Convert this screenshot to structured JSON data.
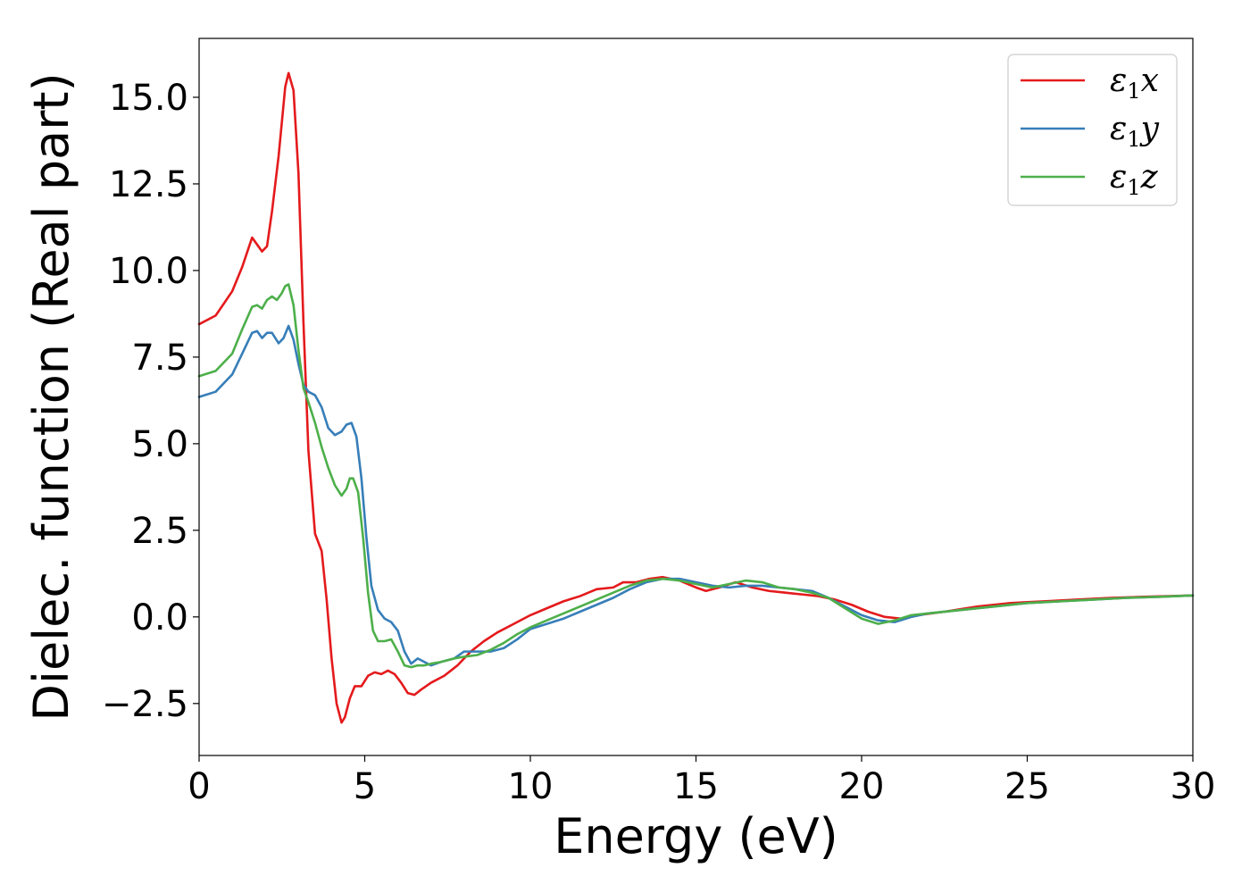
{
  "chart_data": {
    "type": "line",
    "title": "",
    "xlabel": "Energy (eV)",
    "ylabel": "Dielec. function (Real part)",
    "xlim": [
      0,
      30
    ],
    "ylim": [
      -4.0,
      16.7
    ],
    "x_ticks": [
      0,
      5,
      10,
      15,
      20,
      25,
      30
    ],
    "x_tick_labels": [
      "0",
      "5",
      "10",
      "15",
      "20",
      "25",
      "30"
    ],
    "y_ticks": [
      -2.5,
      0.0,
      2.5,
      5.0,
      7.5,
      10.0,
      12.5,
      15.0
    ],
    "y_tick_labels": [
      "−2.5",
      "0.0",
      "2.5",
      "5.0",
      "7.5",
      "10.0",
      "12.5",
      "15.0"
    ],
    "grid": false,
    "legend_position": "top-right",
    "series": [
      {
        "name": "ε1x",
        "legend_base": "ε",
        "legend_sub": "1",
        "legend_suffix": "x",
        "color": "#e41a1c",
        "x": [
          0,
          0.5,
          1.0,
          1.3,
          1.6,
          1.75,
          1.9,
          2.05,
          2.2,
          2.4,
          2.6,
          2.7,
          2.85,
          3.0,
          3.15,
          3.3,
          3.5,
          3.7,
          3.85,
          4.0,
          4.15,
          4.3,
          4.4,
          4.55,
          4.7,
          4.9,
          5.1,
          5.3,
          5.5,
          5.7,
          5.9,
          6.1,
          6.3,
          6.5,
          6.7,
          7.0,
          7.4,
          7.8,
          8.2,
          8.6,
          9.0,
          9.5,
          10.0,
          10.5,
          11.0,
          11.5,
          12.0,
          12.5,
          12.8,
          13.2,
          13.6,
          14.0,
          14.5,
          15.0,
          15.3,
          15.7,
          16.2,
          16.7,
          17.2,
          17.7,
          18.2,
          18.7,
          19.2,
          19.7,
          20.2,
          20.7,
          21.2,
          21.7,
          22.5,
          23.5,
          24.5,
          25.5,
          26.5,
          27.5,
          28.5,
          30.0
        ],
        "y": [
          8.45,
          8.7,
          9.4,
          10.1,
          10.95,
          10.75,
          10.55,
          10.7,
          11.7,
          13.3,
          15.3,
          15.7,
          15.2,
          12.8,
          8.5,
          4.8,
          2.4,
          1.9,
          0.5,
          -1.2,
          -2.5,
          -3.05,
          -2.9,
          -2.35,
          -2.0,
          -2.0,
          -1.7,
          -1.6,
          -1.65,
          -1.55,
          -1.65,
          -1.9,
          -2.2,
          -2.25,
          -2.1,
          -1.9,
          -1.7,
          -1.4,
          -1.0,
          -0.7,
          -0.45,
          -0.2,
          0.05,
          0.25,
          0.45,
          0.6,
          0.8,
          0.85,
          1.0,
          1.0,
          1.1,
          1.15,
          1.05,
          0.85,
          0.75,
          0.85,
          1.0,
          0.85,
          0.75,
          0.7,
          0.65,
          0.6,
          0.5,
          0.35,
          0.15,
          0.0,
          -0.05,
          0.05,
          0.15,
          0.3,
          0.4,
          0.45,
          0.5,
          0.55,
          0.58,
          0.62
        ]
      },
      {
        "name": "ε1y",
        "legend_base": "ε",
        "legend_sub": "1",
        "legend_suffix": "y",
        "color": "#377eb8",
        "x": [
          0,
          0.5,
          1.0,
          1.3,
          1.6,
          1.75,
          1.9,
          2.05,
          2.2,
          2.4,
          2.55,
          2.7,
          2.85,
          3.0,
          3.15,
          3.3,
          3.5,
          3.7,
          3.9,
          4.1,
          4.3,
          4.45,
          4.6,
          4.75,
          4.9,
          5.05,
          5.2,
          5.4,
          5.6,
          5.8,
          6.0,
          6.2,
          6.4,
          6.6,
          6.8,
          7.0,
          7.3,
          7.7,
          8.0,
          8.4,
          8.8,
          9.2,
          9.6,
          10.0,
          10.5,
          11.0,
          11.5,
          12.0,
          12.5,
          13.0,
          13.5,
          14.0,
          14.5,
          15.0,
          15.5,
          16.0,
          16.5,
          17.0,
          17.5,
          18.0,
          18.5,
          19.0,
          19.5,
          20.0,
          20.5,
          21.0,
          21.5,
          22.0,
          23.0,
          24.0,
          25.0,
          26.0,
          27.0,
          28.0,
          29.0,
          30.0
        ],
        "y": [
          6.35,
          6.5,
          7.0,
          7.6,
          8.2,
          8.25,
          8.05,
          8.2,
          8.2,
          7.9,
          8.05,
          8.4,
          8.0,
          7.3,
          6.7,
          6.5,
          6.4,
          6.05,
          5.45,
          5.25,
          5.35,
          5.55,
          5.6,
          5.2,
          4.0,
          2.3,
          0.9,
          0.2,
          -0.05,
          -0.15,
          -0.4,
          -1.0,
          -1.35,
          -1.2,
          -1.3,
          -1.4,
          -1.3,
          -1.2,
          -1.0,
          -1.0,
          -1.0,
          -0.9,
          -0.65,
          -0.35,
          -0.2,
          -0.05,
          0.15,
          0.35,
          0.55,
          0.8,
          1.0,
          1.1,
          1.1,
          1.0,
          0.9,
          0.85,
          0.9,
          0.9,
          0.85,
          0.8,
          0.75,
          0.55,
          0.3,
          0.05,
          -0.1,
          -0.15,
          0.0,
          0.1,
          0.2,
          0.3,
          0.4,
          0.45,
          0.5,
          0.55,
          0.58,
          0.62
        ]
      },
      {
        "name": "ε1z",
        "legend_base": "ε",
        "legend_sub": "1",
        "legend_suffix": "z",
        "color": "#4daf4a",
        "x": [
          0,
          0.5,
          1.0,
          1.3,
          1.6,
          1.75,
          1.9,
          2.05,
          2.2,
          2.35,
          2.5,
          2.6,
          2.7,
          2.85,
          3.0,
          3.15,
          3.3,
          3.5,
          3.7,
          3.9,
          4.1,
          4.3,
          4.45,
          4.55,
          4.65,
          4.8,
          4.95,
          5.1,
          5.25,
          5.4,
          5.6,
          5.8,
          6.0,
          6.2,
          6.4,
          6.6,
          6.8,
          7.0,
          7.3,
          7.7,
          8.0,
          8.4,
          8.8,
          9.2,
          9.6,
          10.0,
          10.5,
          11.0,
          11.5,
          12.0,
          12.5,
          13.0,
          13.5,
          14.0,
          14.5,
          15.0,
          15.5,
          16.0,
          16.5,
          17.0,
          17.5,
          18.0,
          18.5,
          19.0,
          19.5,
          20.0,
          20.5,
          21.0,
          21.5,
          22.0,
          23.0,
          24.0,
          25.0,
          26.0,
          27.0,
          28.0,
          29.0,
          30.0
        ],
        "y": [
          6.95,
          7.1,
          7.6,
          8.3,
          8.95,
          9.0,
          8.9,
          9.15,
          9.25,
          9.15,
          9.35,
          9.55,
          9.6,
          9.0,
          7.7,
          6.6,
          6.2,
          5.6,
          4.9,
          4.3,
          3.8,
          3.5,
          3.7,
          4.0,
          4.0,
          3.6,
          2.3,
          0.7,
          -0.4,
          -0.7,
          -0.7,
          -0.65,
          -1.0,
          -1.4,
          -1.45,
          -1.4,
          -1.4,
          -1.35,
          -1.3,
          -1.2,
          -1.15,
          -1.1,
          -0.95,
          -0.75,
          -0.5,
          -0.3,
          -0.1,
          0.1,
          0.3,
          0.5,
          0.7,
          0.9,
          1.05,
          1.1,
          1.05,
          0.95,
          0.85,
          0.95,
          1.05,
          1.0,
          0.85,
          0.8,
          0.7,
          0.55,
          0.25,
          -0.05,
          -0.2,
          -0.1,
          0.05,
          0.1,
          0.2,
          0.3,
          0.4,
          0.45,
          0.5,
          0.55,
          0.58,
          0.62
        ]
      }
    ]
  }
}
